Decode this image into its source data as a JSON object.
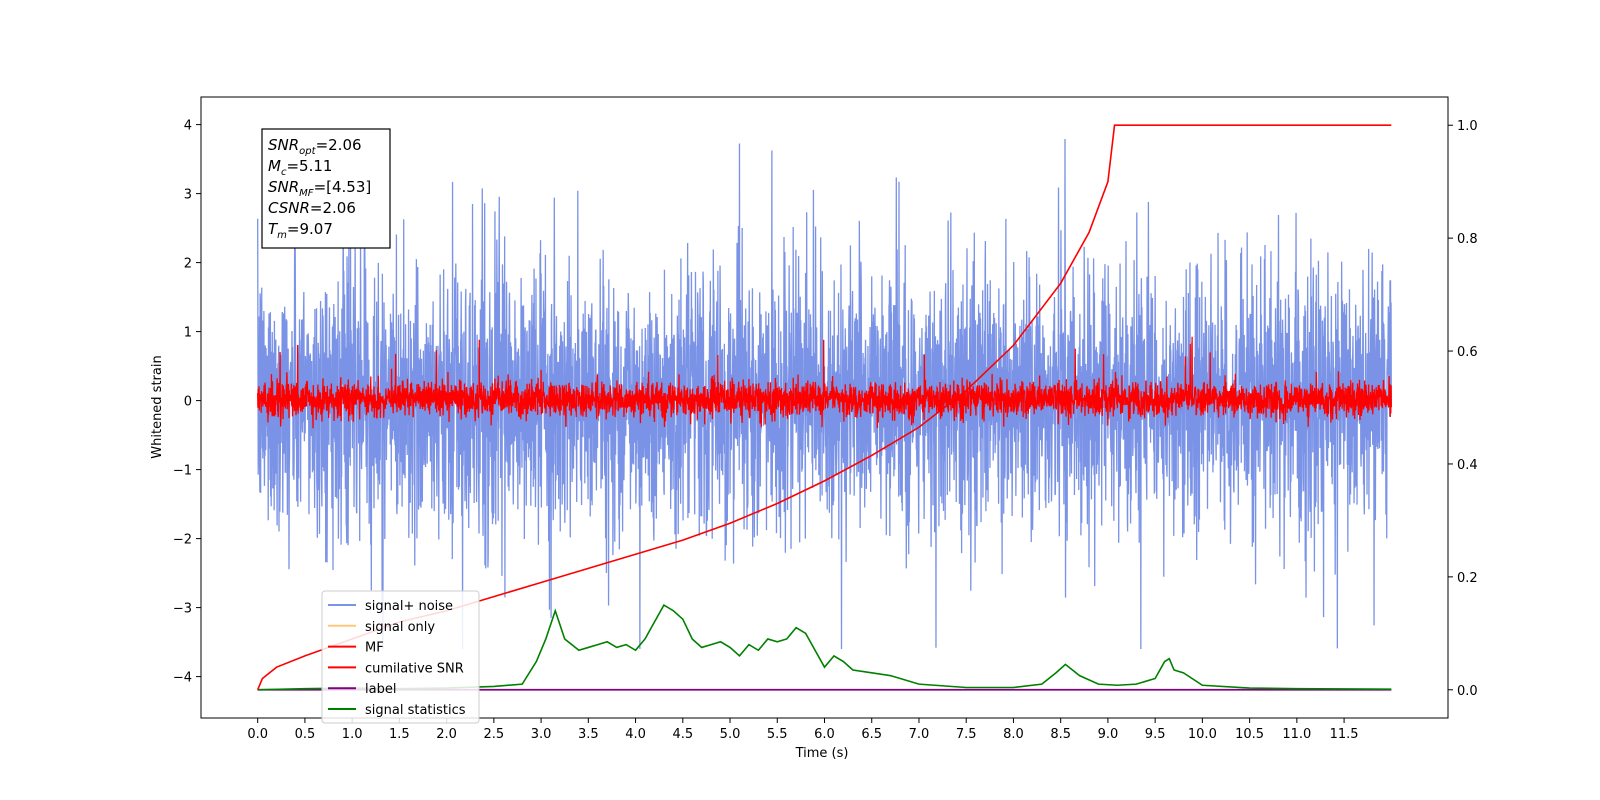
{
  "chart_data": {
    "type": "line",
    "xlabel": "Time (s)",
    "ylabel": "Whitened strain",
    "xlim": [
      -0.6,
      12.6
    ],
    "ylim": [
      -4.6,
      4.4
    ],
    "y2lim": [
      -0.05,
      1.05
    ],
    "xticks": [
      "0.0",
      "0.5",
      "1.0",
      "1.5",
      "2.0",
      "2.5",
      "3.0",
      "3.5",
      "4.0",
      "4.5",
      "5.0",
      "5.5",
      "6.0",
      "6.5",
      "7.0",
      "7.5",
      "8.0",
      "8.5",
      "9.0",
      "9.5",
      "10.0",
      "10.5",
      "11.0",
      "11.5"
    ],
    "yticks": [
      "4",
      "3",
      "2",
      "1",
      "0",
      "−1",
      "−2",
      "−3",
      "−4"
    ],
    "y2ticks": [
      "1.0",
      "0.8",
      "0.6",
      "0.4",
      "0.2",
      "0.0"
    ],
    "grid": false,
    "legend_position": "lower-left",
    "info_box": [
      {
        "sym": "SNR",
        "sub": "opt",
        "val": "=2.06"
      },
      {
        "sym": "M",
        "sub": "c",
        "val": "=5.11"
      },
      {
        "sym": "SNR",
        "sub": "MF",
        "val": "=[4.53]"
      },
      {
        "sym": "CSNR",
        "sub": "",
        "val": "=2.06"
      },
      {
        "sym": "T",
        "sub": "m",
        "val": "=9.07"
      }
    ],
    "series": [
      {
        "name": "signal+ noise",
        "color": "#7a93e6",
        "axis": "left",
        "x_range": [
          0,
          12
        ],
        "typical_range": [
          -2.2,
          2.4
        ],
        "extremes": [
          -3.6,
          4.0
        ]
      },
      {
        "name": "signal only",
        "color": "#ffc87a",
        "axis": "left",
        "x_range": [
          0,
          12
        ],
        "values_note": "near zero"
      },
      {
        "name": "MF",
        "color": "#ff0000",
        "axis": "left",
        "x_range": [
          0,
          12
        ],
        "typical_range": [
          -0.35,
          0.4
        ],
        "extremes": [
          -0.4,
          1.0
        ]
      },
      {
        "name": "cumilative SNR",
        "color": "#ff0000",
        "axis": "right",
        "x": [
          0.0,
          0.05,
          0.2,
          0.5,
          1.0,
          1.5,
          2.0,
          2.5,
          3.0,
          3.5,
          4.0,
          4.5,
          5.0,
          5.5,
          6.0,
          6.5,
          7.0,
          7.5,
          8.0,
          8.5,
          8.8,
          9.0,
          9.07,
          12.0
        ],
        "y": [
          0.0,
          0.02,
          0.04,
          0.06,
          0.09,
          0.12,
          0.14,
          0.165,
          0.19,
          0.215,
          0.24,
          0.265,
          0.295,
          0.33,
          0.37,
          0.415,
          0.465,
          0.53,
          0.61,
          0.72,
          0.81,
          0.9,
          1.0,
          1.0
        ]
      },
      {
        "name": "label",
        "color": "#800080",
        "axis": "right",
        "x": [
          0.0,
          12.0
        ],
        "y": [
          0.0,
          0.0
        ]
      },
      {
        "name": "signal statistics",
        "color": "#008000",
        "axis": "right",
        "x": [
          0.0,
          0.5,
          1.0,
          1.5,
          2.0,
          2.5,
          2.8,
          2.95,
          3.05,
          3.15,
          3.25,
          3.4,
          3.5,
          3.6,
          3.7,
          3.8,
          3.9,
          4.0,
          4.1,
          4.2,
          4.3,
          4.4,
          4.5,
          4.6,
          4.7,
          4.8,
          4.9,
          5.0,
          5.1,
          5.2,
          5.3,
          5.4,
          5.5,
          5.6,
          5.7,
          5.8,
          5.9,
          6.0,
          6.1,
          6.2,
          6.3,
          6.5,
          6.7,
          7.0,
          7.5,
          8.0,
          8.3,
          8.45,
          8.55,
          8.7,
          8.9,
          9.1,
          9.3,
          9.5,
          9.6,
          9.65,
          9.7,
          9.8,
          10.0,
          10.5,
          11.0,
          12.0
        ],
        "y": [
          0.0,
          0.002,
          0.003,
          0.002,
          0.003,
          0.006,
          0.01,
          0.05,
          0.09,
          0.14,
          0.09,
          0.07,
          0.075,
          0.08,
          0.085,
          0.075,
          0.08,
          0.07,
          0.09,
          0.12,
          0.15,
          0.14,
          0.125,
          0.09,
          0.075,
          0.08,
          0.085,
          0.075,
          0.06,
          0.08,
          0.07,
          0.09,
          0.085,
          0.09,
          0.11,
          0.1,
          0.07,
          0.04,
          0.06,
          0.05,
          0.035,
          0.03,
          0.025,
          0.01,
          0.004,
          0.004,
          0.01,
          0.03,
          0.045,
          0.025,
          0.01,
          0.008,
          0.01,
          0.02,
          0.05,
          0.055,
          0.035,
          0.03,
          0.008,
          0.003,
          0.002,
          0.001
        ]
      }
    ]
  }
}
